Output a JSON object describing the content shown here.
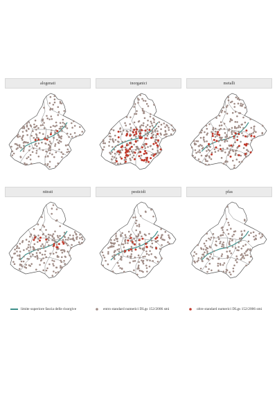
{
  "colors": {
    "boundary": "#555555",
    "within": "#a08c86",
    "over": "#c0392b",
    "resurgence": "#3d8f8a",
    "strip_bg": "#ebebeb"
  },
  "panels": [
    {
      "title": "alogenati",
      "over_count": 6
    },
    {
      "title": "inorganici",
      "over_count": 70
    },
    {
      "title": "metalli",
      "over_count": 28
    },
    {
      "title": "nitrati",
      "over_count": 12
    },
    {
      "title": "pesticidi",
      "over_count": 16
    },
    {
      "title": "pfas",
      "over_count": 0
    }
  ],
  "legend": {
    "line_label": "limite superiore fascia delle risorgive",
    "within_label": "entro standard numerici DLgs 152/2006 smi",
    "over_label": "oltre standard numerici DLgs 152/2006 smi"
  }
}
